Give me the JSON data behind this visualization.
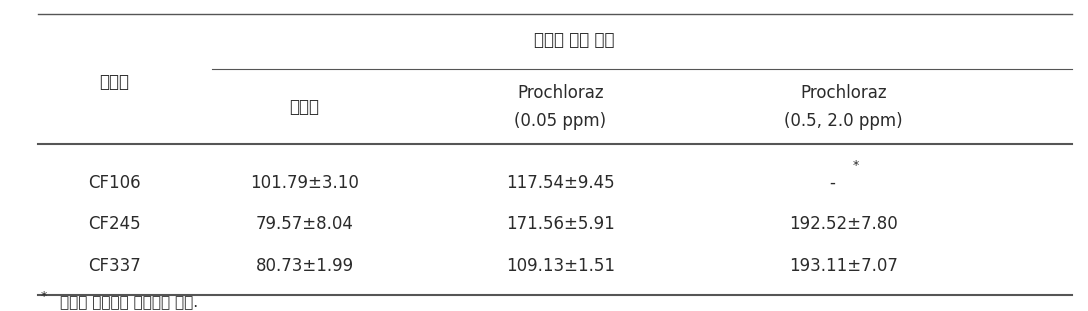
{
  "title": "세포벽 두께 변화",
  "col0_header": "병원균",
  "col1_header": "무처리",
  "col2_header_line1": "Prochloraz",
  "col2_header_line2": "(0.05 ppm)",
  "col3_header_line1": "Prochloraz",
  "col3_header_line2": "(0.5, 2.0 ppm)",
  "rows": [
    [
      "CF106",
      "101.79±3.10",
      "117.54±9.45",
      "-",
      "*"
    ],
    [
      "CF245",
      "79.57±8.04",
      "171.56±5.91",
      "192.52±7.80",
      ""
    ],
    [
      "CF337",
      "80.73±1.99",
      "109.13±1.51",
      "193.11±7.07",
      ""
    ]
  ],
  "footnote_super": "*",
  "footnote_text": "민감성 병원균은 생장하지 못함.",
  "bg_color": "#ffffff",
  "text_color": "#2b2b2b",
  "line_color": "#555555",
  "font_size": 12
}
